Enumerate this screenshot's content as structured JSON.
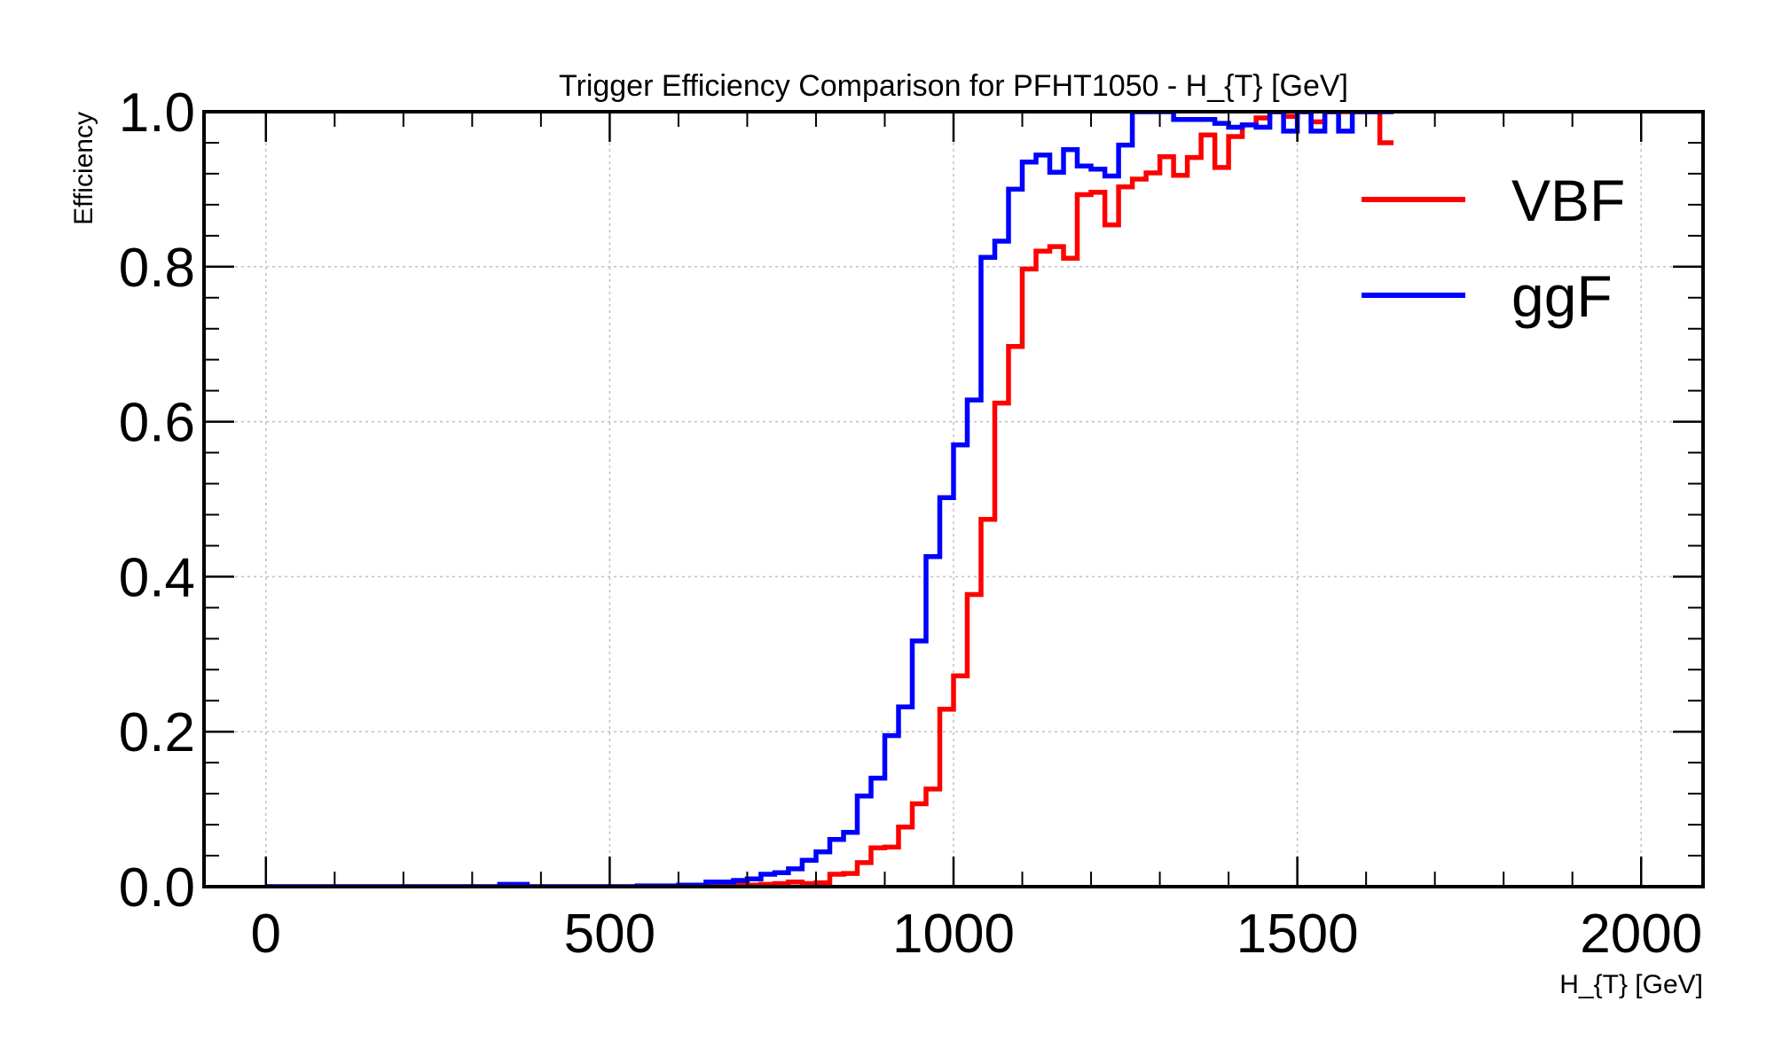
{
  "chart_data": {
    "type": "line",
    "title": "Trigger Efficiency Comparison for PFHT1050 - H_{T} [GeV]",
    "xlabel": "H_{T} [GeV]",
    "ylabel": "Efficiency",
    "xlim": [
      -90,
      2090
    ],
    "ylim": [
      0.0,
      1.0
    ],
    "xticks": [
      0,
      500,
      1000,
      1500,
      2000
    ],
    "xtick_labels": [
      "0",
      "500",
      "1000",
      "1500",
      "2000"
    ],
    "yticks": [
      0.0,
      0.2,
      0.4,
      0.6,
      0.8,
      1.0
    ],
    "ytick_labels": [
      "0.0",
      "0.2",
      "0.4",
      "0.6",
      "0.8",
      "1.0"
    ],
    "grid": true,
    "legend_position": "top-right",
    "bin_edges": [
      0,
      20,
      40,
      60,
      80,
      100,
      120,
      140,
      160,
      180,
      200,
      220,
      240,
      260,
      280,
      300,
      320,
      340,
      360,
      380,
      400,
      420,
      440,
      460,
      480,
      500,
      520,
      540,
      560,
      580,
      600,
      620,
      640,
      660,
      680,
      700,
      720,
      740,
      760,
      780,
      800,
      820,
      840,
      860,
      880,
      900,
      920,
      940,
      960,
      980,
      1000,
      1020,
      1040,
      1060,
      1080,
      1100,
      1120,
      1140,
      1160,
      1180,
      1200,
      1220,
      1240,
      1260,
      1280,
      1300,
      1320,
      1340,
      1360,
      1380,
      1400,
      1420,
      1440,
      1460,
      1480,
      1500,
      1520,
      1540,
      1560,
      1580,
      1600,
      1620,
      1640
    ],
    "series": [
      {
        "name": "VBF",
        "color": "#ff0000",
        "values": [
          0,
          0,
          0,
          0,
          0,
          0,
          0,
          0,
          0,
          0,
          0,
          0,
          0,
          0,
          0,
          0,
          0,
          0,
          0,
          0,
          0,
          0,
          0,
          0,
          0,
          0,
          0,
          0,
          0,
          0,
          0,
          0,
          0.001,
          0.002,
          0.002,
          0.002,
          0.003,
          0.004,
          0.006,
          0.004,
          0.005,
          0.016,
          0.017,
          0.031,
          0.05,
          0.051,
          0.077,
          0.107,
          0.126,
          0.229,
          0.272,
          0.377,
          0.474,
          0.624,
          0.697,
          0.797,
          0.82,
          0.826,
          0.811,
          0.893,
          0.896,
          0.854,
          0.903,
          0.913,
          0.921,
          0.942,
          0.918,
          0.941,
          0.97,
          0.928,
          0.968,
          0.983,
          0.992,
          1.0,
          0.994,
          1.0,
          0.987,
          1.0,
          1.0,
          1.0,
          1.0,
          0.96
        ]
      },
      {
        "name": "ggF",
        "color": "#0000ff",
        "values": [
          0,
          0,
          0,
          0,
          0,
          0,
          0,
          0,
          0,
          0,
          0,
          0,
          0,
          0,
          0,
          0,
          0,
          0.003,
          0.003,
          0,
          0,
          0,
          0,
          0,
          0,
          0,
          0,
          0.001,
          0.001,
          0.001,
          0.002,
          0.002,
          0.006,
          0.006,
          0.008,
          0.01,
          0.016,
          0.018,
          0.023,
          0.034,
          0.045,
          0.061,
          0.07,
          0.117,
          0.14,
          0.195,
          0.232,
          0.317,
          0.426,
          0.502,
          0.57,
          0.628,
          0.812,
          0.833,
          0.9,
          0.935,
          0.944,
          0.922,
          0.951,
          0.93,
          0.926,
          0.917,
          0.957,
          1.0,
          1.0,
          1.0,
          0.99,
          0.99,
          0.99,
          0.985,
          0.98,
          0.983,
          0.98,
          1.0,
          0.975,
          1.0,
          0.975,
          1.0,
          0.975,
          1.0,
          1.0,
          1.0
        ]
      }
    ]
  }
}
